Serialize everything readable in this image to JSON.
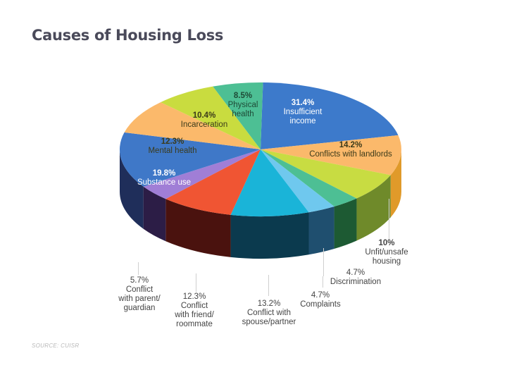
{
  "title": "Causes of Housing Loss",
  "source": "SOURCE: CUISR",
  "chart_data": {
    "type": "pie",
    "title": "Causes of Housing Loss",
    "style": "3d",
    "slices": [
      {
        "label": "Insufficient income",
        "value": 31.4,
        "display": "31.4%",
        "color": "#3d7acb",
        "side": "#2a5590"
      },
      {
        "label": "Conflicts with landlords",
        "value": 14.2,
        "display": "14.2%",
        "color": "#fbb96b",
        "side": "#e09a2a"
      },
      {
        "label": "Unfit/unsafe housing",
        "value": 10,
        "display": "10%",
        "color": "#c8dc42",
        "side": "#6f8a2a"
      },
      {
        "label": "Discrimination",
        "value": 4.7,
        "display": "4.7%",
        "color": "#4dbf94",
        "side": "#1d5a33"
      },
      {
        "label": "Complaints",
        "value": 4.7,
        "display": "4.7%",
        "color": "#6fc8ee",
        "side": "#1f4f6f"
      },
      {
        "label": "Conflict with spouse/partner",
        "value": 13.2,
        "display": "13.2%",
        "color": "#1ab4d8",
        "side": "#0b3a4e"
      },
      {
        "label": "Conflict with friend/roommate",
        "value": 12.3,
        "display": "12.3%",
        "color": "#f05533",
        "side": "#4a120e"
      },
      {
        "label": "Conflict with parent/guardian",
        "value": 5.7,
        "display": "5.7%",
        "color": "#a07ed6",
        "side": "#2c1d46"
      },
      {
        "label": "Substance use",
        "value": 19.8,
        "display": "19.8%",
        "color": "#3f78c8",
        "side": "#1f2e5a"
      },
      {
        "label": "Mental health",
        "value": 12.3,
        "display": "12.3%",
        "color": "#fbb96b",
        "side": "#d48f2a"
      },
      {
        "label": "Incarceration",
        "value": 10.4,
        "display": "10.4%",
        "color": "#c9dc3f",
        "side": "#7a8a2a"
      },
      {
        "label": "Physical health",
        "value": 8.5,
        "display": "8.5%",
        "color": "#4dbf94",
        "side": "#2a7a5a"
      }
    ],
    "start_angle_deg": -89,
    "sweep_scale": "top-of-ellipse angles measured in the projected view; percentages as labeled (labels do not sum to 100)"
  },
  "labels": {
    "income": {
      "pct": "31.4%",
      "name1": "Insufficient",
      "name2": "income"
    },
    "landlords": {
      "pct": "14.2%",
      "name": "Conflicts with landlords"
    },
    "physical": {
      "pct": "8.5%",
      "name1": "Physical",
      "name2": "health"
    },
    "incarceration": {
      "pct": "10.4%",
      "name": "Incarceration"
    },
    "mental": {
      "pct": "12.3%",
      "name": "Mental health"
    },
    "substance": {
      "pct": "19.8%",
      "name": "Substance use"
    },
    "unfit": {
      "pct": "10%",
      "name1": "Unfit/unsafe",
      "name2": "housing"
    },
    "discrimination": {
      "pct": "4.7%",
      "name": "Discrimination"
    },
    "complaints": {
      "pct": "4.7%",
      "name": "Complaints"
    },
    "spouse": {
      "pct": "13.2%",
      "name1": "Conflict with",
      "name2": "spouse/partner"
    },
    "friend": {
      "pct": "12.3%",
      "name1": "Conflict",
      "name2": "with friend/",
      "name3": "roommate"
    },
    "parent": {
      "pct": "5.7%",
      "name1": "Conflict",
      "name2": "with parent/",
      "name3": "guardian"
    }
  }
}
